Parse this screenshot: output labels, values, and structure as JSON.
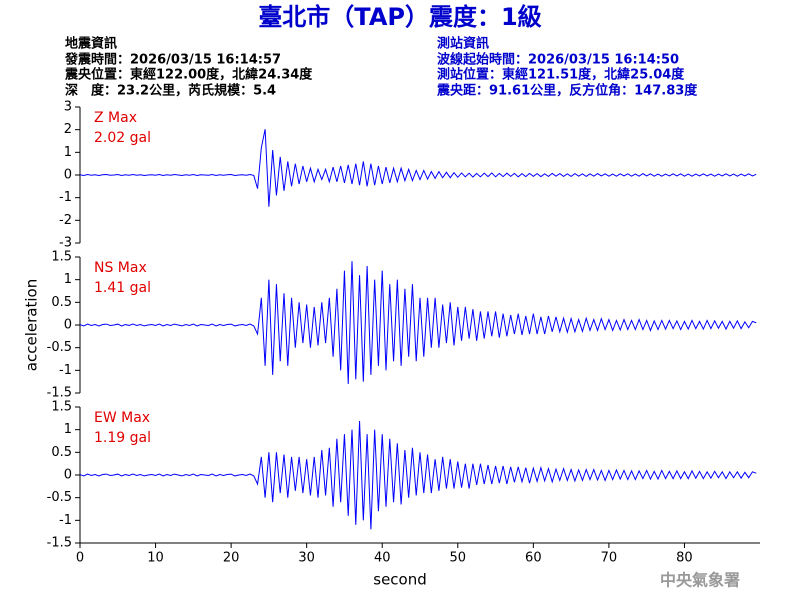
{
  "header": {
    "title": "臺北市（TAP）震度：1級",
    "left": [
      "地震資訊",
      "發震時間：2026/03/15 16:14:57",
      "震央位置：東經122.00度，北緯24.34度",
      "深　度：23.2公里，芮氏規模：5.4"
    ],
    "right": [
      "測站資訊",
      "波線起始時間：2026/03/15 16:14:50",
      "測站位置：東經121.51度，北緯25.04度",
      "震央距：91.61公里，反方位角：147.83度"
    ]
  },
  "footer": "中央氣象署",
  "chart_data": [
    {
      "type": "line",
      "color": "#0000ff",
      "annotations": [
        "Z Max",
        "2.02 gal"
      ],
      "xlim": [
        0,
        90
      ],
      "ylim": [
        -3,
        3
      ],
      "yticks": [
        -3,
        -2,
        -1,
        0,
        1,
        2,
        3
      ],
      "x": [
        0,
        0.5,
        1,
        1.5,
        2,
        2.5,
        3,
        3.5,
        4,
        4.5,
        5,
        5.5,
        6,
        6.5,
        7,
        7.5,
        8,
        8.5,
        9,
        9.5,
        10,
        10.5,
        11,
        11.5,
        12,
        12.5,
        13,
        13.5,
        14,
        14.5,
        15,
        15.5,
        16,
        16.5,
        17,
        17.5,
        18,
        18.5,
        19,
        19.5,
        20,
        20.5,
        21,
        21.5,
        22,
        22.5,
        23,
        23.5,
        24,
        24.5,
        25,
        25.5,
        26,
        26.5,
        27,
        27.5,
        28,
        28.5,
        29,
        29.5,
        30,
        30.5,
        31,
        31.5,
        32,
        32.5,
        33,
        33.5,
        34,
        34.5,
        35,
        35.5,
        36,
        36.5,
        37,
        37.5,
        38,
        38.5,
        39,
        39.5,
        40,
        40.5,
        41,
        41.5,
        42,
        42.5,
        43,
        43.5,
        44,
        44.5,
        45,
        45.5,
        46,
        46.5,
        47,
        47.5,
        48,
        48.5,
        49,
        49.5,
        50,
        50.5,
        51,
        51.5,
        52,
        52.5,
        53,
        53.5,
        54,
        54.5,
        55,
        55.5,
        56,
        56.5,
        57,
        57.5,
        58,
        58.5,
        59,
        59.5,
        60,
        60.5,
        61,
        61.5,
        62,
        62.5,
        63,
        63.5,
        64,
        64.5,
        65,
        65.5,
        66,
        66.5,
        67,
        67.5,
        68,
        68.5,
        69,
        69.5,
        70,
        70.5,
        71,
        71.5,
        72,
        72.5,
        73,
        73.5,
        74,
        74.5,
        75,
        75.5,
        76,
        76.5,
        77,
        77.5,
        78,
        78.5,
        79,
        79.5,
        80,
        80.5,
        81,
        81.5,
        82,
        82.5,
        83,
        83.5,
        84,
        84.5,
        85,
        85.5,
        86,
        86.5,
        87,
        87.5,
        88,
        88.5,
        89,
        89.5
      ],
      "values": [
        0.01,
        -0.02,
        0.02,
        -0.01,
        0.01,
        -0.02,
        0.01,
        0.02,
        -0.01,
        0,
        0.02,
        -0.02,
        0.01,
        -0.01,
        0.02,
        -0.01,
        0.01,
        -0.02,
        0,
        0.01,
        -0.01,
        0.02,
        -0.02,
        0.01,
        -0.01,
        0.02,
        0,
        -0.02,
        0.01,
        -0.01,
        0.02,
        -0.02,
        0.01,
        0,
        -0.01,
        0.02,
        -0.02,
        0.01,
        -0.01,
        0.01,
        0.02,
        -0.02,
        0,
        0.01,
        -0.01,
        0.02,
        -0.02,
        -0.6,
        1.2,
        2.02,
        -1.4,
        1.1,
        -0.9,
        0.8,
        -0.7,
        0.6,
        -0.5,
        0.5,
        -0.4,
        0.4,
        -0.3,
        0.3,
        -0.3,
        0.25,
        -0.2,
        0.25,
        -0.3,
        0.35,
        -0.3,
        0.4,
        -0.35,
        0.45,
        -0.4,
        0.5,
        -0.45,
        0.6,
        -0.5,
        0.5,
        -0.45,
        0.4,
        -0.4,
        0.35,
        -0.35,
        0.3,
        -0.3,
        0.3,
        -0.25,
        0.25,
        -0.25,
        0.2,
        -0.2,
        0.2,
        -0.18,
        0.15,
        -0.15,
        0.15,
        -0.12,
        0.12,
        -0.12,
        0.1,
        -0.1,
        0.09,
        -0.08,
        0.08,
        -0.09,
        0.07,
        -0.08,
        0.08,
        -0.07,
        0.09,
        -0.08,
        0.07,
        -0.07,
        0.08,
        -0.06,
        0.07,
        -0.08,
        0.06,
        -0.07,
        0.07,
        -0.06,
        0.06,
        -0.07,
        0.05,
        -0.06,
        0.07,
        -0.05,
        0.06,
        -0.06,
        0.05,
        -0.06,
        0.06,
        -0.05,
        0.05,
        -0.06,
        0.05,
        -0.05,
        0.06,
        -0.04,
        0.05,
        -0.05,
        0.04,
        -0.05,
        0.05,
        -0.04,
        0.05,
        -0.05,
        0.04,
        -0.05,
        0.06,
        -0.04,
        0.05,
        -0.05,
        0.04,
        -0.05,
        0.04,
        -0.04,
        0.05,
        -0.04,
        0.05,
        -0.05,
        0.04,
        -0.05,
        0.04,
        -0.04,
        0.05,
        -0.04,
        0.04,
        -0.05,
        0.04,
        -0.04,
        0.05,
        -0.04,
        0.04,
        -0.05,
        0.04,
        -0.04,
        0.05,
        -0.04,
        0.03
      ]
    },
    {
      "type": "line",
      "color": "#0000ff",
      "annotations": [
        "NS Max",
        "1.41 gal"
      ],
      "ylabel": "acceleration",
      "xlim": [
        0,
        90
      ],
      "ylim": [
        -1.5,
        1.5
      ],
      "yticks": [
        -1.5,
        -1,
        -0.5,
        0,
        0.5,
        1,
        1.5
      ],
      "x": [
        0,
        0.5,
        1,
        1.5,
        2,
        2.5,
        3,
        3.5,
        4,
        4.5,
        5,
        5.5,
        6,
        6.5,
        7,
        7.5,
        8,
        8.5,
        9,
        9.5,
        10,
        10.5,
        11,
        11.5,
        12,
        12.5,
        13,
        13.5,
        14,
        14.5,
        15,
        15.5,
        16,
        16.5,
        17,
        17.5,
        18,
        18.5,
        19,
        19.5,
        20,
        20.5,
        21,
        21.5,
        22,
        22.5,
        23,
        23.5,
        24,
        24.5,
        25,
        25.5,
        26,
        26.5,
        27,
        27.5,
        28,
        28.5,
        29,
        29.5,
        30,
        30.5,
        31,
        31.5,
        32,
        32.5,
        33,
        33.5,
        34,
        34.5,
        35,
        35.5,
        36,
        36.5,
        37,
        37.5,
        38,
        38.5,
        39,
        39.5,
        40,
        40.5,
        41,
        41.5,
        42,
        42.5,
        43,
        43.5,
        44,
        44.5,
        45,
        45.5,
        46,
        46.5,
        47,
        47.5,
        48,
        48.5,
        49,
        49.5,
        50,
        50.5,
        51,
        51.5,
        52,
        52.5,
        53,
        53.5,
        54,
        54.5,
        55,
        55.5,
        56,
        56.5,
        57,
        57.5,
        58,
        58.5,
        59,
        59.5,
        60,
        60.5,
        61,
        61.5,
        62,
        62.5,
        63,
        63.5,
        64,
        64.5,
        65,
        65.5,
        66,
        66.5,
        67,
        67.5,
        68,
        68.5,
        69,
        69.5,
        70,
        70.5,
        71,
        71.5,
        72,
        72.5,
        73,
        73.5,
        74,
        74.5,
        75,
        75.5,
        76,
        76.5,
        77,
        77.5,
        78,
        78.5,
        79,
        79.5,
        80,
        80.5,
        81,
        81.5,
        82,
        82.5,
        83,
        83.5,
        84,
        84.5,
        85,
        85.5,
        86,
        86.5,
        87,
        87.5,
        88,
        88.5,
        89,
        89.5
      ],
      "values": [
        0.01,
        -0.02,
        0.02,
        -0.01,
        0.01,
        -0.02,
        0.01,
        0.02,
        -0.01,
        0,
        0.02,
        -0.02,
        0.01,
        -0.01,
        0.02,
        -0.01,
        0.01,
        -0.02,
        0,
        0.01,
        -0.01,
        0.02,
        -0.02,
        0.01,
        -0.01,
        0.02,
        0,
        -0.02,
        0.01,
        -0.01,
        0.02,
        -0.02,
        0.01,
        0,
        -0.01,
        0.02,
        -0.02,
        0.01,
        -0.01,
        0.01,
        0.02,
        -0.02,
        0,
        0.01,
        -0.01,
        0.02,
        -0.02,
        -0.2,
        0.6,
        -0.9,
        1.0,
        -1.1,
        0.9,
        -0.8,
        0.7,
        -0.9,
        0.6,
        -0.5,
        0.5,
        -0.4,
        0.45,
        -0.5,
        0.4,
        -0.45,
        0.5,
        -0.4,
        0.6,
        -0.7,
        0.8,
        -1.0,
        1.2,
        -1.3,
        1.41,
        -1.2,
        1.1,
        -1.25,
        1.3,
        -1.1,
        1.0,
        -0.9,
        1.2,
        -1.0,
        0.9,
        -0.8,
        1.0,
        -0.9,
        0.8,
        -0.7,
        0.9,
        -0.8,
        0.6,
        -0.7,
        0.6,
        -0.5,
        0.6,
        -0.5,
        0.45,
        -0.4,
        0.5,
        -0.45,
        0.4,
        -0.35,
        0.4,
        -0.3,
        0.35,
        -0.35,
        0.3,
        -0.3,
        0.3,
        -0.25,
        0.3,
        -0.28,
        0.25,
        -0.25,
        0.22,
        -0.2,
        0.25,
        -0.22,
        0.2,
        -0.2,
        0.25,
        -0.2,
        0.18,
        -0.2,
        0.2,
        -0.15,
        0.18,
        -0.15,
        0.15,
        -0.16,
        0.14,
        -0.15,
        0.12,
        -0.14,
        0.15,
        -0.12,
        0.12,
        -0.12,
        0.14,
        -0.1,
        0.12,
        -0.12,
        0.1,
        -0.11,
        0.12,
        -0.1,
        0.1,
        -0.1,
        0.12,
        -0.1,
        0.1,
        -0.12,
        0.09,
        -0.1,
        0.1,
        -0.09,
        0.1,
        -0.08,
        0.09,
        -0.1,
        0.08,
        -0.09,
        0.1,
        -0.08,
        0.08,
        -0.09,
        0.1,
        -0.08,
        0.09,
        -0.07,
        0.08,
        -0.09,
        0.08,
        -0.07,
        0.09,
        -0.08,
        0.07,
        -0.06,
        0.08,
        0.05
      ]
    },
    {
      "type": "line",
      "color": "#0000ff",
      "annotations": [
        "EW Max",
        "1.19 gal"
      ],
      "xlabel": "second",
      "xlim": [
        0,
        90
      ],
      "ylim": [
        -1.5,
        1.5
      ],
      "yticks": [
        -1.5,
        -1,
        -0.5,
        0,
        0.5,
        1,
        1.5
      ],
      "xticks": [
        0,
        10,
        20,
        30,
        40,
        50,
        60,
        70,
        80
      ],
      "x": [
        0,
        0.5,
        1,
        1.5,
        2,
        2.5,
        3,
        3.5,
        4,
        4.5,
        5,
        5.5,
        6,
        6.5,
        7,
        7.5,
        8,
        8.5,
        9,
        9.5,
        10,
        10.5,
        11,
        11.5,
        12,
        12.5,
        13,
        13.5,
        14,
        14.5,
        15,
        15.5,
        16,
        16.5,
        17,
        17.5,
        18,
        18.5,
        19,
        19.5,
        20,
        20.5,
        21,
        21.5,
        22,
        22.5,
        23,
        23.5,
        24,
        24.5,
        25,
        25.5,
        26,
        26.5,
        27,
        27.5,
        28,
        28.5,
        29,
        29.5,
        30,
        30.5,
        31,
        31.5,
        32,
        32.5,
        33,
        33.5,
        34,
        34.5,
        35,
        35.5,
        36,
        36.5,
        37,
        37.5,
        38,
        38.5,
        39,
        39.5,
        40,
        40.5,
        41,
        41.5,
        42,
        42.5,
        43,
        43.5,
        44,
        44.5,
        45,
        45.5,
        46,
        46.5,
        47,
        47.5,
        48,
        48.5,
        49,
        49.5,
        50,
        50.5,
        51,
        51.5,
        52,
        52.5,
        53,
        53.5,
        54,
        54.5,
        55,
        55.5,
        56,
        56.5,
        57,
        57.5,
        58,
        58.5,
        59,
        59.5,
        60,
        60.5,
        61,
        61.5,
        62,
        62.5,
        63,
        63.5,
        64,
        64.5,
        65,
        65.5,
        66,
        66.5,
        67,
        67.5,
        68,
        68.5,
        69,
        69.5,
        70,
        70.5,
        71,
        71.5,
        72,
        72.5,
        73,
        73.5,
        74,
        74.5,
        75,
        75.5,
        76,
        76.5,
        77,
        77.5,
        78,
        78.5,
        79,
        79.5,
        80,
        80.5,
        81,
        81.5,
        82,
        82.5,
        83,
        83.5,
        84,
        84.5,
        85,
        85.5,
        86,
        86.5,
        87,
        87.5,
        88,
        88.5,
        89,
        89.5
      ],
      "values": [
        0.01,
        -0.02,
        0.02,
        -0.01,
        0.01,
        -0.02,
        0.01,
        0.02,
        -0.01,
        0,
        0.02,
        -0.02,
        0.01,
        -0.01,
        0.02,
        -0.01,
        0.01,
        -0.02,
        0,
        0.01,
        -0.01,
        0.02,
        -0.02,
        0.01,
        -0.01,
        0.02,
        0,
        -0.02,
        0.01,
        -0.01,
        0.02,
        -0.02,
        0.01,
        0,
        -0.01,
        0.02,
        -0.02,
        0.01,
        -0.01,
        0.01,
        0.02,
        -0.02,
        0,
        0.01,
        -0.01,
        0.02,
        -0.02,
        -0.2,
        0.4,
        -0.5,
        0.5,
        -0.6,
        0.5,
        -0.4,
        0.45,
        -0.5,
        0.4,
        -0.35,
        0.4,
        -0.4,
        0.35,
        -0.45,
        0.4,
        -0.5,
        0.55,
        -0.45,
        0.6,
        -0.7,
        0.8,
        -0.6,
        0.9,
        -0.9,
        1.0,
        -1.1,
        1.19,
        -1.0,
        0.9,
        -1.2,
        1.0,
        -0.8,
        0.9,
        -0.7,
        0.8,
        -0.6,
        0.7,
        -0.65,
        0.55,
        -0.5,
        0.6,
        -0.45,
        0.5,
        -0.4,
        0.45,
        -0.4,
        0.35,
        -0.35,
        0.4,
        -0.3,
        0.35,
        -0.3,
        0.3,
        -0.28,
        0.25,
        -0.3,
        0.25,
        -0.22,
        0.25,
        -0.2,
        0.22,
        -0.2,
        0.2,
        -0.18,
        0.2,
        -0.2,
        0.18,
        -0.16,
        0.18,
        -0.15,
        0.16,
        -0.18,
        0.15,
        -0.14,
        0.16,
        -0.13,
        0.14,
        -0.15,
        0.13,
        -0.12,
        0.14,
        -0.12,
        0.12,
        -0.13,
        0.11,
        -0.12,
        0.12,
        -0.1,
        0.12,
        -0.11,
        0.1,
        -0.12,
        0.1,
        -0.1,
        0.11,
        -0.09,
        0.1,
        -0.1,
        0.09,
        -0.1,
        0.09,
        -0.08,
        0.1,
        -0.09,
        0.08,
        -0.09,
        0.1,
        -0.08,
        0.08,
        -0.08,
        0.09,
        -0.08,
        0.07,
        -0.08,
        0.09,
        -0.07,
        0.08,
        -0.08,
        0.07,
        -0.07,
        0.08,
        -0.06,
        0.07,
        -0.08,
        0.07,
        -0.06,
        0.07,
        -0.07,
        0.06,
        -0.06,
        0.07,
        0.04
      ]
    }
  ]
}
